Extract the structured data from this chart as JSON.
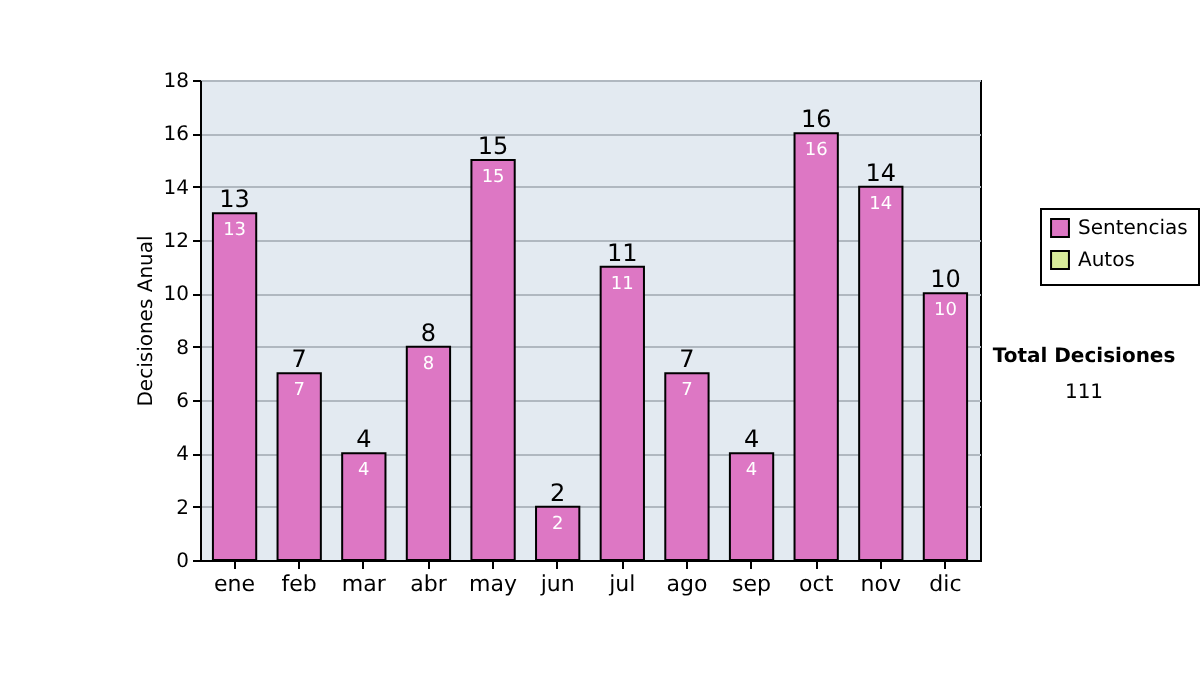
{
  "chart_data": {
    "type": "bar",
    "ylabel": "Decisiones Anual",
    "categories": [
      "ene",
      "feb",
      "mar",
      "abr",
      "may",
      "jun",
      "jul",
      "ago",
      "sep",
      "oct",
      "nov",
      "dic"
    ],
    "series": [
      {
        "name": "Sentencias",
        "color": "#dd77c4",
        "values": [
          13,
          7,
          4,
          8,
          15,
          2,
          11,
          7,
          4,
          16,
          14,
          10
        ]
      },
      {
        "name": "Autos",
        "color": "#d8ec9a",
        "values": [
          null,
          null,
          null,
          null,
          null,
          null,
          null,
          null,
          null,
          null,
          null,
          null
        ]
      }
    ],
    "ylim": [
      0,
      18
    ],
    "yticks": [
      0,
      2,
      4,
      6,
      8,
      10,
      12,
      14,
      16,
      18
    ],
    "grid": "y",
    "legend": "right",
    "data_labels": true,
    "annotations": [
      {
        "text": "13",
        "x": "ene",
        "y": 13
      },
      {
        "text": "7",
        "x": "feb",
        "y": 7
      },
      {
        "text": "4",
        "x": "mar",
        "y": 4
      },
      {
        "text": "8",
        "x": "abr",
        "y": 8
      },
      {
        "text": "15",
        "x": "may",
        "y": 15
      },
      {
        "text": "2",
        "x": "jun",
        "y": 2
      },
      {
        "text": "11",
        "x": "jul",
        "y": 11
      },
      {
        "text": "7",
        "x": "ago",
        "y": 7
      },
      {
        "text": "4",
        "x": "sep",
        "y": 4
      },
      {
        "text": "16",
        "x": "oct",
        "y": 16
      },
      {
        "text": "14",
        "x": "nov",
        "y": 14
      },
      {
        "text": "10",
        "x": "dic",
        "y": 10
      },
      "Total Decisiones",
      "111"
    ]
  }
}
